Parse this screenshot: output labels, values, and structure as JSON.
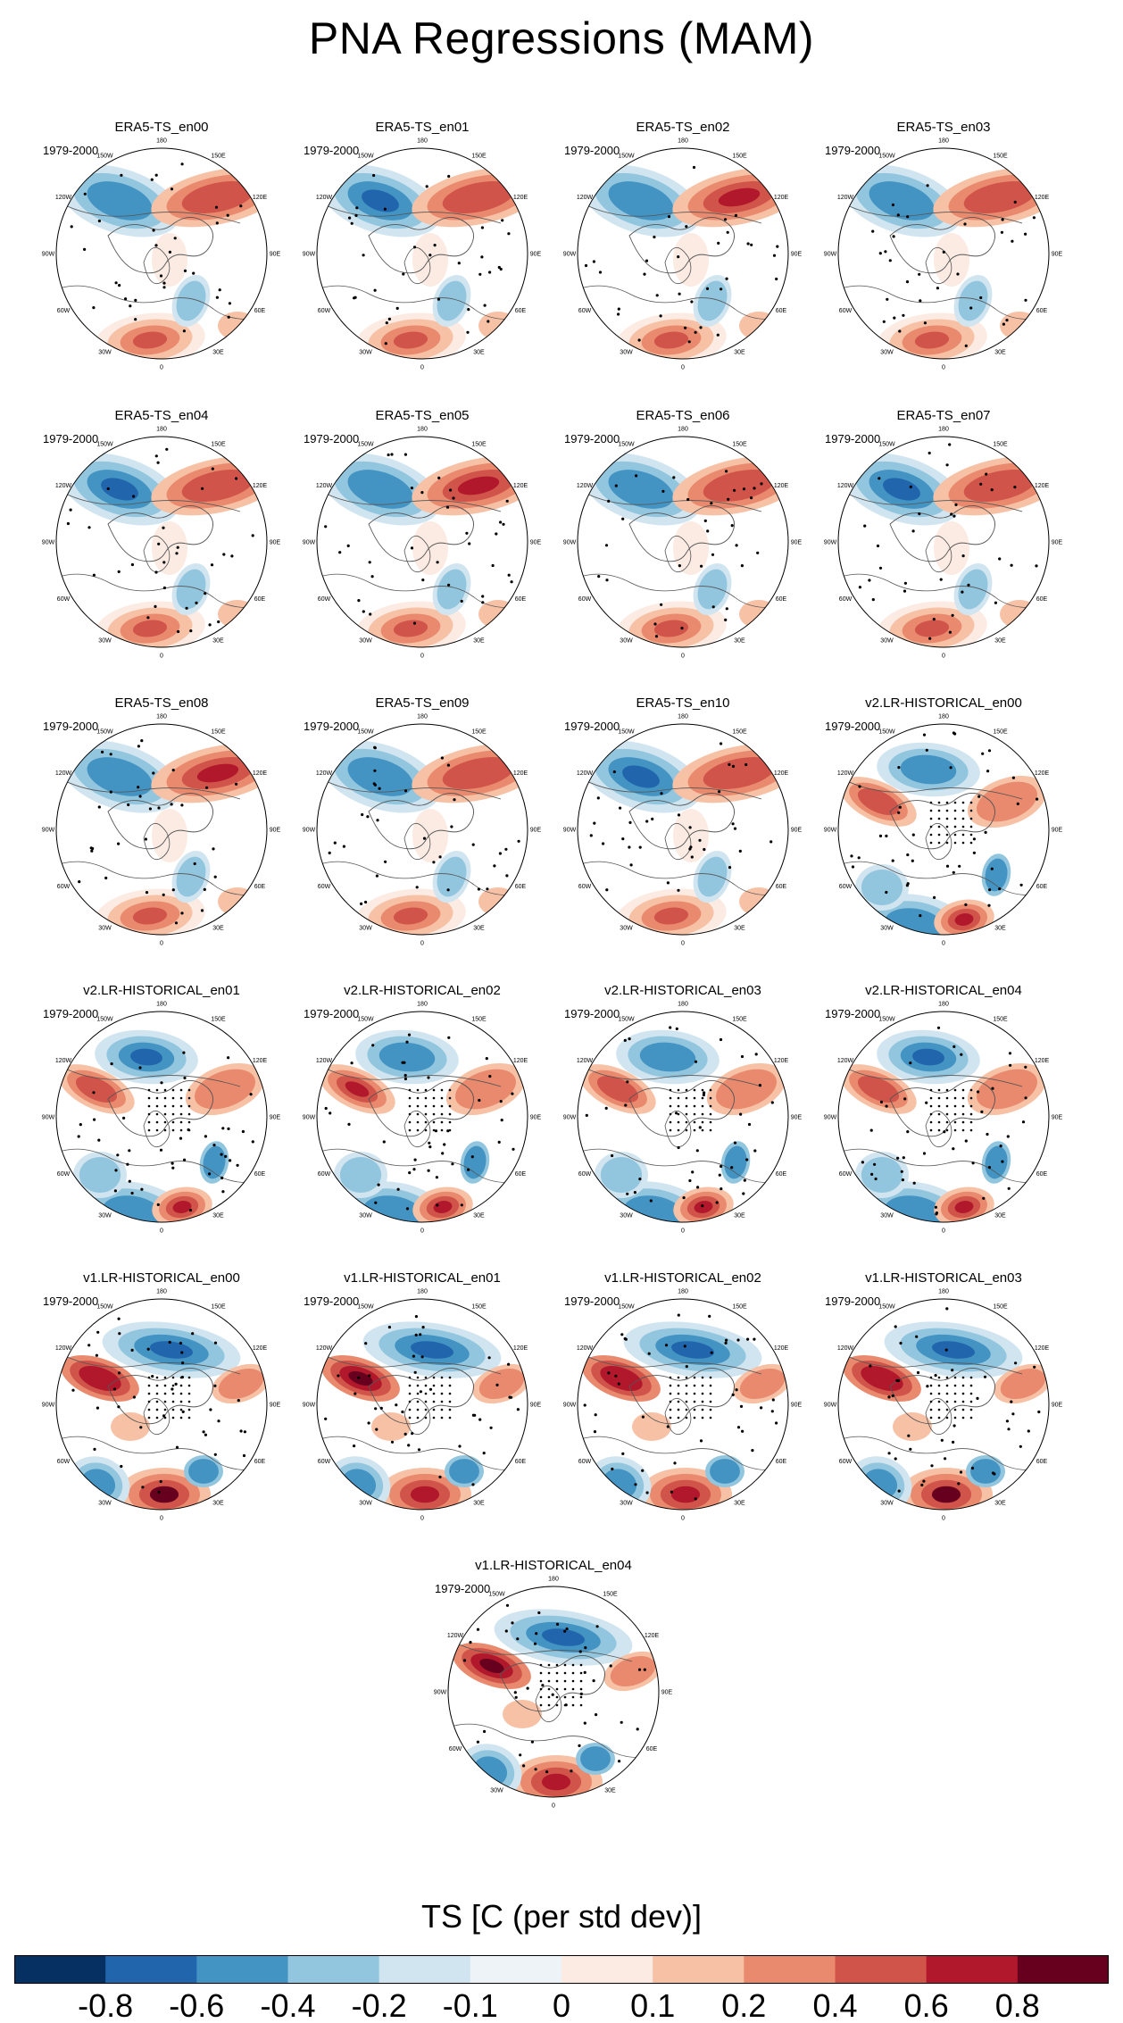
{
  "title": "PNA Regressions (MAM)",
  "period": "1979-2000",
  "longitude_labels": [
    "180",
    "150E",
    "120E",
    "90E",
    "60E",
    "30E",
    "0",
    "30W",
    "60W",
    "90W",
    "120W",
    "150W"
  ],
  "colorbar": {
    "title": "TS [C (per std dev)]",
    "levels": [
      -0.8,
      -0.6,
      -0.4,
      -0.2,
      -0.1,
      0,
      0.1,
      0.2,
      0.4,
      0.6,
      0.8
    ],
    "level_labels": [
      "-0.8",
      "-0.6",
      "-0.4",
      "-0.2",
      "-0.1",
      "0",
      "0.1",
      "0.2",
      "0.4",
      "0.6",
      "0.8"
    ],
    "colors": [
      "#053061",
      "#2166ac",
      "#4393c3",
      "#92c5de",
      "#d1e5f0",
      "#eef3f7",
      "#fbebe3",
      "#f7c1a6",
      "#e98a6e",
      "#d1544a",
      "#b2182b",
      "#67001f"
    ]
  },
  "chart_data": {
    "type": "heatmap",
    "projection": "north polar stereographic",
    "variable": "TS",
    "season": "MAM",
    "panels": [
      {
        "name": "ERA5-TS_en00",
        "group": "ERA5"
      },
      {
        "name": "ERA5-TS_en01",
        "group": "ERA5"
      },
      {
        "name": "ERA5-TS_en02",
        "group": "ERA5"
      },
      {
        "name": "ERA5-TS_en03",
        "group": "ERA5"
      },
      {
        "name": "ERA5-TS_en04",
        "group": "ERA5"
      },
      {
        "name": "ERA5-TS_en05",
        "group": "ERA5"
      },
      {
        "name": "ERA5-TS_en06",
        "group": "ERA5"
      },
      {
        "name": "ERA5-TS_en07",
        "group": "ERA5"
      },
      {
        "name": "ERA5-TS_en08",
        "group": "ERA5"
      },
      {
        "name": "ERA5-TS_en09",
        "group": "ERA5"
      },
      {
        "name": "ERA5-TS_en10",
        "group": "ERA5"
      },
      {
        "name": "v2.LR-HISTORICAL_en00",
        "group": "v2"
      },
      {
        "name": "v2.LR-HISTORICAL_en01",
        "group": "v2"
      },
      {
        "name": "v2.LR-HISTORICAL_en02",
        "group": "v2"
      },
      {
        "name": "v2.LR-HISTORICAL_en03",
        "group": "v2"
      },
      {
        "name": "v2.LR-HISTORICAL_en04",
        "group": "v2"
      },
      {
        "name": "v1.LR-HISTORICAL_en00",
        "group": "v1"
      },
      {
        "name": "v1.LR-HISTORICAL_en01",
        "group": "v1"
      },
      {
        "name": "v1.LR-HISTORICAL_en02",
        "group": "v1"
      },
      {
        "name": "v1.LR-HISTORICAL_en03",
        "group": "v1"
      },
      {
        "name": "v1.LR-HISTORICAL_en04",
        "group": "v1"
      }
    ]
  }
}
